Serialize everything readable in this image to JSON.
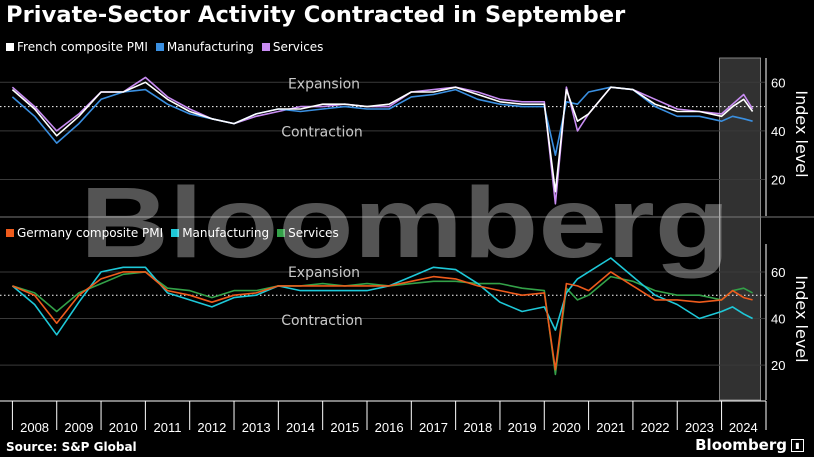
{
  "title": "Private-Sector Activity Contracted in September",
  "source": "Source: S&P Global",
  "brand": "Bloomberg",
  "watermark": "Bloomberg",
  "colors": {
    "french_composite": "#ffffff",
    "french_manufacturing": "#3a8fe0",
    "french_services": "#c88cf2",
    "germany_composite": "#ee5b1c",
    "germany_manufacturing": "#1ec8d8",
    "germany_services": "#33a148",
    "grid": "#3a3a3a",
    "dotted": "#ffffff",
    "highlight": "#3a3a3a"
  },
  "chart_data": [
    {
      "type": "line",
      "panel": "France",
      "legend": [
        "French composite PMI",
        "Manufacturing",
        "Services"
      ],
      "ylabel": "Index level",
      "yticks": [
        20,
        40,
        60
      ],
      "ylim": [
        5,
        70
      ],
      "reference": 50,
      "annotations": {
        "above": "Expansion",
        "below": "Contraction"
      },
      "x": [
        2008.0,
        2008.5,
        2009.0,
        2009.5,
        2010.0,
        2010.5,
        2011.0,
        2011.5,
        2012.0,
        2012.5,
        2013.0,
        2013.5,
        2014.0,
        2014.5,
        2015.0,
        2015.5,
        2016.0,
        2016.5,
        2017.0,
        2017.5,
        2018.0,
        2018.5,
        2019.0,
        2019.5,
        2020.0,
        2020.25,
        2020.5,
        2020.75,
        2021.0,
        2021.5,
        2022.0,
        2022.5,
        2023.0,
        2023.5,
        2024.0,
        2024.25,
        2024.5,
        2024.7
      ],
      "series": [
        {
          "name": "French composite PMI",
          "values": [
            57,
            49,
            38,
            46,
            56,
            56,
            60,
            53,
            48,
            45,
            43,
            47,
            49,
            49,
            51,
            51,
            50,
            51,
            56,
            56,
            58,
            55,
            52,
            51,
            51,
            15,
            57,
            44,
            47,
            58,
            57,
            51,
            48,
            48,
            46,
            50,
            53,
            48
          ]
        },
        {
          "name": "Manufacturing",
          "values": [
            54,
            46,
            35,
            43,
            53,
            56,
            57,
            51,
            47,
            45,
            43,
            47,
            49,
            48,
            49,
            50,
            49,
            49,
            54,
            55,
            57,
            53,
            51,
            50,
            50,
            30,
            52,
            51,
            56,
            58,
            57,
            50,
            46,
            46,
            44,
            46,
            45,
            44
          ]
        },
        {
          "name": "Services",
          "values": [
            58,
            50,
            40,
            47,
            56,
            56,
            62,
            54,
            49,
            45,
            43,
            46,
            48,
            50,
            50,
            51,
            50,
            50,
            56,
            57,
            58,
            56,
            53,
            52,
            52,
            10,
            58,
            40,
            47,
            58,
            57,
            53,
            49,
            48,
            47,
            51,
            55,
            49
          ]
        }
      ]
    },
    {
      "type": "line",
      "panel": "Germany",
      "legend": [
        "Germany composite PMI",
        "Manufacturing",
        "Services"
      ],
      "ylabel": "Index level",
      "yticks": [
        20,
        40,
        60
      ],
      "ylim": [
        5,
        72
      ],
      "reference": 50,
      "annotations": {
        "above": "Expansion",
        "below": "Contraction"
      },
      "x": [
        2008.0,
        2008.5,
        2009.0,
        2009.5,
        2010.0,
        2010.5,
        2011.0,
        2011.5,
        2012.0,
        2012.5,
        2013.0,
        2013.5,
        2014.0,
        2014.5,
        2015.0,
        2015.5,
        2016.0,
        2016.5,
        2017.0,
        2017.5,
        2018.0,
        2018.5,
        2019.0,
        2019.5,
        2020.0,
        2020.25,
        2020.5,
        2020.75,
        2021.0,
        2021.5,
        2022.0,
        2022.5,
        2023.0,
        2023.5,
        2024.0,
        2024.25,
        2024.5,
        2024.7
      ],
      "series": [
        {
          "name": "Germany composite PMI",
          "values": [
            54,
            50,
            38,
            50,
            57,
            60,
            60,
            52,
            50,
            47,
            50,
            51,
            54,
            54,
            54,
            54,
            54,
            54,
            56,
            58,
            57,
            54,
            52,
            50,
            51,
            18,
            55,
            54,
            52,
            60,
            54,
            48,
            48,
            47,
            48,
            52,
            49,
            48
          ]
        },
        {
          "name": "Manufacturing",
          "values": [
            54,
            46,
            33,
            47,
            60,
            62,
            62,
            51,
            48,
            45,
            49,
            50,
            54,
            52,
            52,
            52,
            52,
            54,
            58,
            62,
            61,
            55,
            47,
            43,
            45,
            35,
            51,
            57,
            60,
            66,
            58,
            50,
            46,
            40,
            43,
            45,
            42,
            40
          ]
        },
        {
          "name": "Services",
          "values": [
            54,
            51,
            43,
            51,
            55,
            59,
            60,
            53,
            52,
            49,
            52,
            52,
            54,
            54,
            55,
            54,
            55,
            54,
            55,
            56,
            56,
            55,
            55,
            53,
            52,
            16,
            53,
            48,
            50,
            58,
            56,
            52,
            50,
            50,
            48,
            52,
            53,
            51
          ]
        }
      ]
    }
  ],
  "x_axis": {
    "tick_labels": [
      "2008",
      "2009",
      "2010",
      "2011",
      "2012",
      "2013",
      "2014",
      "2015",
      "2016",
      "2017",
      "2018",
      "2019",
      "2020",
      "2021",
      "2022",
      "2023",
      "2024"
    ],
    "highlight_range": [
      2024.0,
      2024.7
    ]
  }
}
